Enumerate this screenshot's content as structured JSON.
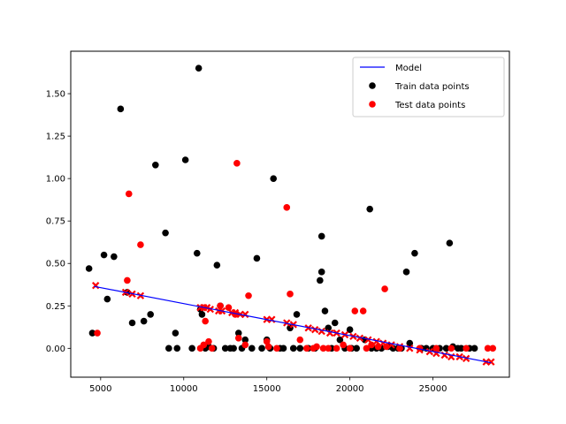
{
  "chart_data": {
    "type": "scatter",
    "title": "",
    "xlabel": "",
    "ylabel": "",
    "xlim": [
      3200,
      29600
    ],
    "ylim": [
      -0.17,
      1.75
    ],
    "xticks": [
      5000,
      10000,
      15000,
      20000,
      25000
    ],
    "yticks": [
      0.0,
      0.25,
      0.5,
      0.75,
      1.0,
      1.25,
      1.5
    ],
    "legend_position": "top-right",
    "grid": false,
    "colors": {
      "model": "#0000ff",
      "train": "#000000",
      "test": "#ff0000",
      "fit_marker": "#ff0000"
    },
    "legend": [
      {
        "label": "Model",
        "kind": "line",
        "color": "#0000ff"
      },
      {
        "label": "Train data points",
        "kind": "dot",
        "color": "#000000"
      },
      {
        "label": "Test data points",
        "kind": "dot",
        "color": "#ff0000"
      }
    ],
    "series": [
      {
        "name": "Model",
        "kind": "line",
        "x": [
          4600,
          28500
        ],
        "y": [
          0.365,
          -0.085
        ]
      },
      {
        "name": "Train data points",
        "kind": "scatter",
        "x": [
          4300,
          4500,
          5200,
          5400,
          5800,
          6200,
          6600,
          6900,
          7600,
          8000,
          8300,
          8900,
          9100,
          9500,
          9600,
          10100,
          10500,
          10800,
          10900,
          11000,
          11100,
          11300,
          11500,
          11800,
          12000,
          12200,
          12500,
          12800,
          13000,
          13300,
          13500,
          13700,
          14100,
          14400,
          14700,
          15000,
          15200,
          15400,
          15800,
          16000,
          16400,
          16600,
          16800,
          17000,
          17500,
          17900,
          18200,
          18300,
          18300,
          18500,
          18700,
          18900,
          19100,
          19400,
          19700,
          20000,
          20100,
          20400,
          20900,
          21200,
          21300,
          21600,
          21900,
          22300,
          22600,
          22900,
          23100,
          23400,
          23600,
          23900,
          24300,
          24600,
          25000,
          25400,
          25800,
          26000,
          26200,
          26500,
          26700,
          27200,
          27500
        ],
        "y": [
          0.47,
          0.09,
          0.55,
          0.29,
          0.54,
          1.41,
          0.33,
          0.15,
          0.16,
          0.2,
          1.08,
          0.68,
          0.0,
          0.09,
          0.0,
          1.11,
          0.0,
          0.56,
          1.65,
          0.23,
          0.2,
          0.0,
          0.01,
          0.0,
          0.49,
          0.25,
          0.0,
          0.0,
          0.0,
          0.09,
          0.0,
          0.05,
          0.0,
          0.53,
          0.0,
          0.05,
          0.0,
          1.0,
          0.0,
          0.0,
          0.12,
          0.0,
          0.2,
          0.0,
          0.0,
          0.0,
          0.4,
          0.45,
          0.66,
          0.22,
          0.12,
          0.0,
          0.15,
          0.05,
          0.0,
          0.11,
          0.0,
          0.0,
          0.05,
          0.82,
          0.0,
          0.0,
          0.0,
          0.01,
          0.0,
          0.0,
          0.0,
          0.45,
          0.03,
          0.56,
          0.0,
          0.0,
          0.0,
          0.0,
          0.0,
          0.62,
          0.01,
          0.0,
          0.0,
          0.0,
          0.0
        ]
      },
      {
        "name": "Test data points",
        "kind": "scatter",
        "x": [
          4800,
          6600,
          6700,
          7400,
          11000,
          11200,
          11300,
          11500,
          11700,
          12200,
          12700,
          13100,
          13200,
          13300,
          13700,
          13900,
          15000,
          15100,
          15600,
          16200,
          16400,
          17000,
          17400,
          17800,
          18000,
          18400,
          18700,
          19200,
          19600,
          20000,
          20300,
          20800,
          21000,
          21300,
          21700,
          22100,
          22200,
          23000,
          24200,
          25200,
          26100,
          27000,
          28300,
          28600
        ],
        "y": [
          0.09,
          0.4,
          0.91,
          0.61,
          0.0,
          0.02,
          0.16,
          0.04,
          0.0,
          0.25,
          0.24,
          0.2,
          1.09,
          0.06,
          0.02,
          0.31,
          0.04,
          0.01,
          0.0,
          0.83,
          0.32,
          0.05,
          0.0,
          0.0,
          0.01,
          0.0,
          0.0,
          0.0,
          0.02,
          0.0,
          0.22,
          0.22,
          0.0,
          0.02,
          0.01,
          0.35,
          0.01,
          0.0,
          0.0,
          0.0,
          0.0,
          0.0,
          0.0,
          0.0
        ]
      },
      {
        "name": "",
        "kind": "x-marker",
        "x": [
          4700,
          6500,
          6900,
          7400,
          11000,
          11200,
          11400,
          11600,
          12100,
          12300,
          12900,
          13100,
          13400,
          13700,
          15000,
          15300,
          16200,
          16600,
          17500,
          17900,
          18300,
          18800,
          19200,
          19700,
          20200,
          20600,
          21100,
          21600,
          22000,
          22500,
          23000,
          23600,
          24200,
          24800,
          25200,
          25700,
          26100,
          26600,
          27000,
          28200,
          28500
        ],
        "y": [
          0.37,
          0.33,
          0.32,
          0.31,
          0.24,
          0.24,
          0.24,
          0.23,
          0.22,
          0.22,
          0.21,
          0.21,
          0.2,
          0.2,
          0.17,
          0.17,
          0.15,
          0.14,
          0.12,
          0.11,
          0.1,
          0.09,
          0.09,
          0.08,
          0.07,
          0.06,
          0.05,
          0.04,
          0.03,
          0.02,
          0.01,
          0.0,
          -0.01,
          -0.02,
          -0.03,
          -0.04,
          -0.05,
          -0.05,
          -0.06,
          -0.08,
          -0.08
        ]
      }
    ]
  }
}
